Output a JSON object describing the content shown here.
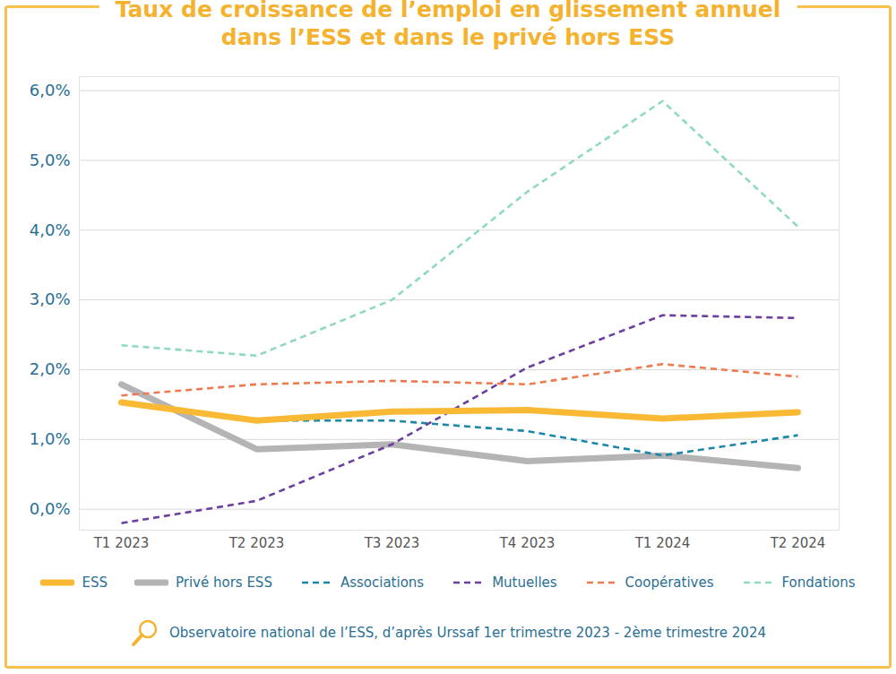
{
  "chart_data": {
    "type": "line",
    "title": "Taux de croissance de l’emploi en glissement annuel dans l’ESS et dans le privé hors ESS",
    "caption": "Observatoire national de l’ESS, d’après Urssaf 1er trimestre 2023 - 2ème trimestre 2024",
    "categories": [
      "T1 2023",
      "T2 2023",
      "T3 2023",
      "T4 2023",
      "T1 2024",
      "T2 2024"
    ],
    "series": [
      {
        "name": "ESS",
        "color": "#f9b934",
        "line_style": "solid",
        "values": [
          1.53,
          1.27,
          1.4,
          1.42,
          1.3,
          1.39
        ]
      },
      {
        "name": "Privé hors ESS",
        "color": "#b4b4b4",
        "line_style": "solid",
        "values": [
          1.79,
          0.86,
          0.93,
          0.69,
          0.77,
          0.59
        ]
      },
      {
        "name": "Associations",
        "color": "#1a86a8",
        "line_style": "dashed",
        "values": [
          1.53,
          1.27,
          1.27,
          1.12,
          0.77,
          1.06
        ]
      },
      {
        "name": "Mutuelles",
        "color": "#6b3fa0",
        "line_style": "dashed",
        "values": [
          -0.2,
          0.12,
          0.93,
          2.03,
          2.78,
          2.74
        ]
      },
      {
        "name": "Coopératives",
        "color": "#f07a50",
        "line_style": "dashed",
        "values": [
          1.63,
          1.79,
          1.84,
          1.79,
          2.08,
          1.9
        ]
      },
      {
        "name": "Fondations",
        "color": "#8fd9c4",
        "line_style": "dashed",
        "values": [
          2.35,
          2.2,
          3.0,
          4.55,
          5.85,
          4.05
        ]
      }
    ],
    "ylim": [
      -0.3,
      6.2
    ],
    "yticks": [
      {
        "value": 0,
        "label": "0,0%"
      },
      {
        "value": 1,
        "label": "1,0%"
      },
      {
        "value": 2,
        "label": "2,0%"
      },
      {
        "value": 3,
        "label": "3,0%"
      },
      {
        "value": 4,
        "label": "4,0%"
      },
      {
        "value": 5,
        "label": "5,0%"
      },
      {
        "value": 6,
        "label": "6,0%"
      }
    ],
    "grid": true,
    "legend": "bottom"
  }
}
